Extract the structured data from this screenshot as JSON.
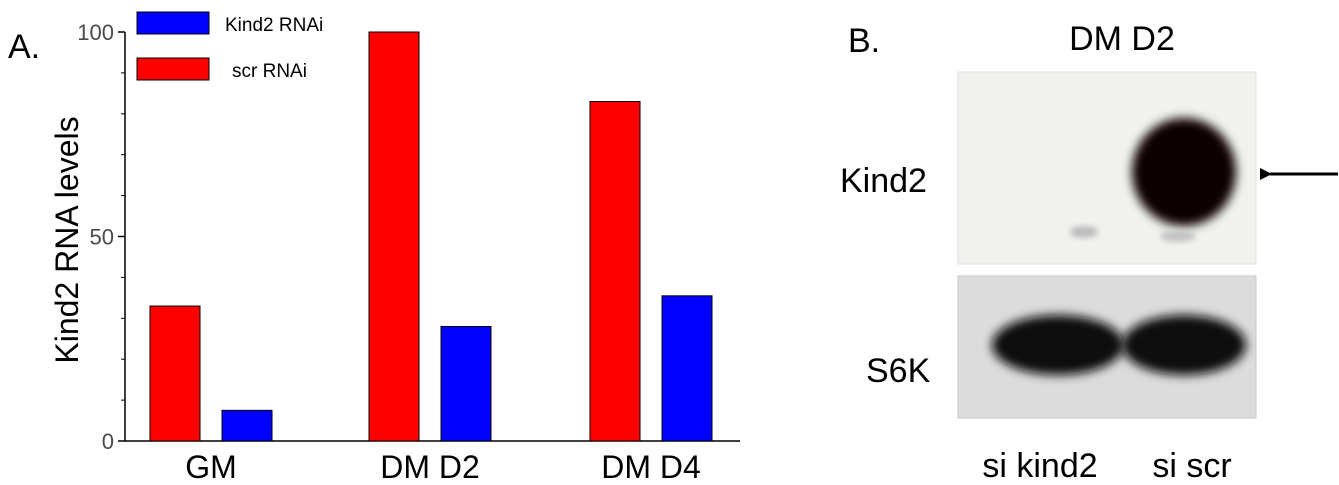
{
  "panel_a": {
    "label": "A.",
    "chart_data": {
      "type": "bar",
      "categories": [
        "GM",
        "DM D2",
        "DM D4"
      ],
      "series": [
        {
          "name": "scr RNAi",
          "color": "#ff0000",
          "values": [
            33,
            100,
            83
          ]
        },
        {
          "name": "Kind2 RNAi",
          "color": "#0000ff",
          "values": [
            7.5,
            28,
            35.5
          ]
        }
      ],
      "title": "",
      "xlabel": "",
      "ylabel": "Kind2 RNA levels",
      "ylim": [
        0,
        100
      ],
      "yticks": [
        "0",
        "50",
        "100"
      ],
      "legend": "top-left",
      "legend_order": [
        "Kind2 RNAi",
        "scr RNAi"
      ],
      "grid": false
    }
  },
  "panel_b": {
    "label": "B.",
    "title": "DM D2",
    "row_labels": [
      "Kind2",
      "S6K"
    ],
    "lane_labels": [
      "si kind2",
      "si scr"
    ],
    "arrow_icon": "left-arrow"
  }
}
